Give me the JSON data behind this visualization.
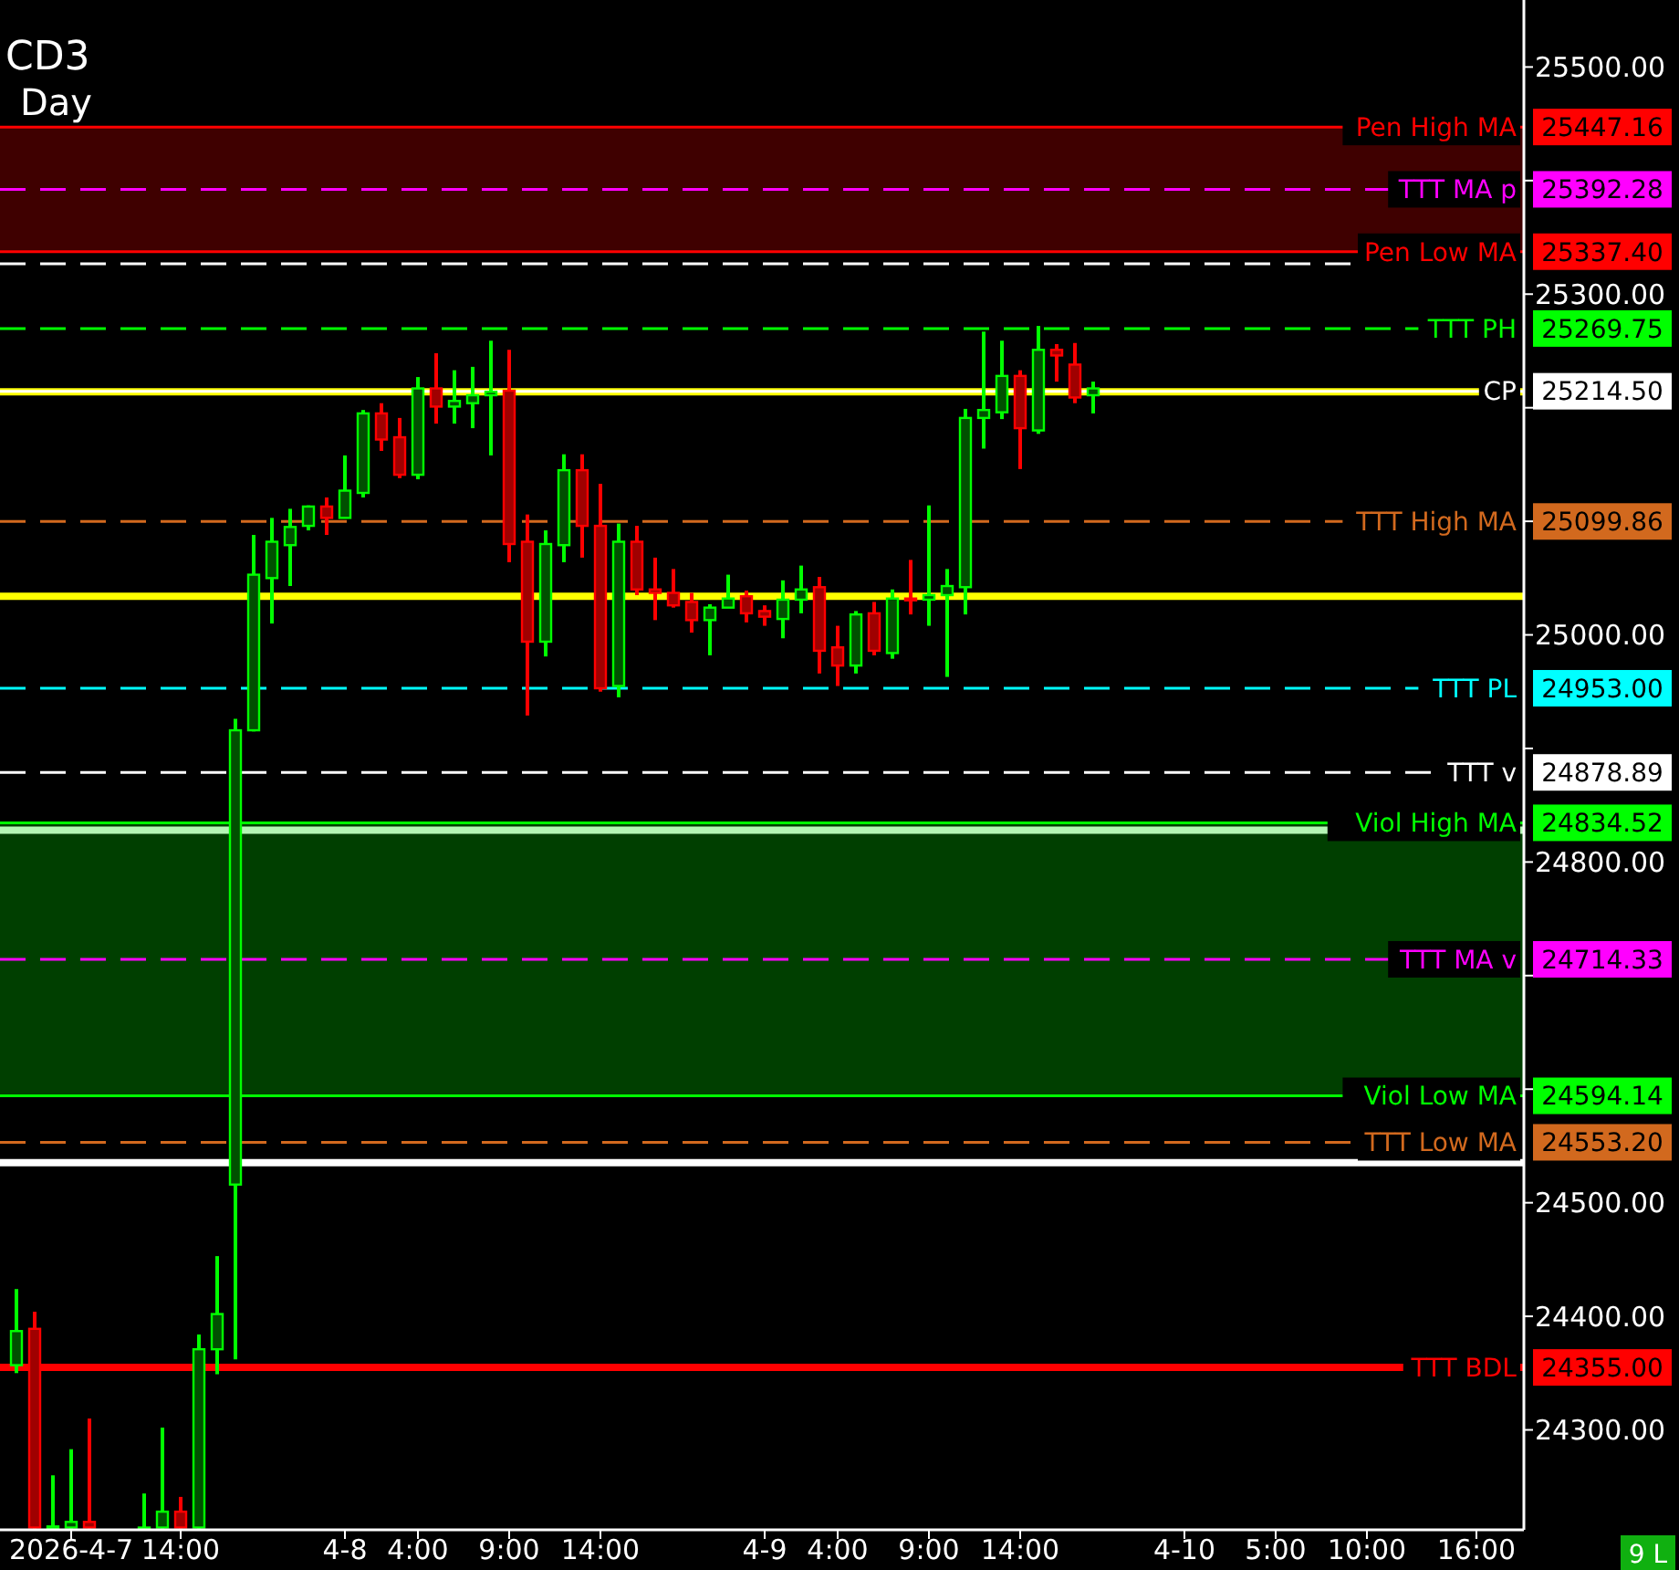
{
  "chart_data": {
    "type": "candlestick",
    "title": "CD3",
    "subtitle": "Day",
    "categories": [
      null,
      null,
      null,
      "2026-4-7",
      null,
      null,
      null,
      null,
      null,
      "14:00",
      null,
      null,
      null,
      null,
      null,
      null,
      null,
      null,
      "4-8",
      null,
      null,
      null,
      "4:00",
      null,
      null,
      null,
      null,
      "9:00",
      null,
      null,
      null,
      null,
      "14:00",
      null,
      null,
      null,
      null,
      null,
      null,
      null,
      null,
      "4-9",
      null,
      null,
      null,
      "4:00",
      null,
      null,
      null,
      null,
      "9:00",
      null,
      null,
      null,
      null,
      "14:00",
      null,
      null,
      null,
      null,
      null,
      null,
      null,
      null,
      "4-10",
      null,
      null,
      null,
      null,
      "5:00",
      null,
      null,
      null,
      null,
      "10:00",
      null,
      null,
      null,
      null,
      null,
      "16:00",
      null,
      null
    ],
    "ohlc": [
      [
        24357,
        24424,
        24350,
        24387
      ],
      [
        24389,
        24404,
        24213,
        24214
      ],
      [
        24213,
        24260,
        24213,
        24215
      ],
      [
        24214,
        24283,
        24213,
        24219
      ],
      [
        24219,
        24310,
        24213,
        24214
      ],
      null,
      null,
      [
        24213,
        24244,
        24213,
        24214
      ],
      [
        24214,
        24302,
        24213,
        24228
      ],
      [
        24228,
        24241,
        24213,
        24214
      ],
      [
        24214,
        24384,
        24213,
        24371
      ],
      [
        24371,
        24453,
        24349,
        24402
      ],
      [
        24516,
        24926,
        24362,
        24916
      ],
      [
        24916,
        25088,
        24915,
        25053
      ],
      [
        25050,
        25103,
        25010,
        25082
      ],
      [
        25079,
        25111,
        25043,
        25095
      ],
      [
        25096,
        25114,
        25092,
        25113
      ],
      [
        25113,
        25121,
        25088,
        25103
      ],
      [
        25103,
        25158,
        25103,
        25127
      ],
      [
        25125,
        25198,
        25121,
        25195
      ],
      [
        25195,
        25204,
        25162,
        25172
      ],
      [
        25174,
        25191,
        25138,
        25141
      ],
      [
        25141,
        25227,
        25137,
        25217
      ],
      [
        25217,
        25248,
        25186,
        25201
      ],
      [
        25201,
        25233,
        25186,
        25206
      ],
      [
        25204,
        25236,
        25182,
        25211
      ],
      [
        25211,
        25259,
        25158,
        25214
      ],
      [
        25215,
        25251,
        25064,
        25080
      ],
      [
        25082,
        25106,
        24929,
        24994
      ],
      [
        24994,
        25092,
        24981,
        25080
      ],
      [
        25079,
        25159,
        25064,
        25145
      ],
      [
        25145,
        25159,
        25068,
        25096
      ],
      [
        25096,
        25133,
        24950,
        24953
      ],
      [
        24955,
        25098,
        24945,
        25082
      ],
      [
        25082,
        25096,
        25035,
        25040
      ],
      [
        25040,
        25068,
        25013,
        25037
      ],
      [
        25037,
        25058,
        25024,
        25026
      ],
      [
        25029,
        25037,
        25002,
        25013
      ],
      [
        25013,
        25027,
        24982,
        25024
      ],
      [
        25024,
        25053,
        25024,
        25032
      ],
      [
        25034,
        25039,
        25011,
        25019
      ],
      [
        25021,
        25026,
        25008,
        25016
      ],
      [
        25014,
        25048,
        24997,
        25031
      ],
      [
        25031,
        25061,
        25019,
        25040
      ],
      [
        25042,
        25051,
        24966,
        24986
      ],
      [
        24989,
        25008,
        24955,
        24973
      ],
      [
        24973,
        25021,
        24966,
        25018
      ],
      [
        25019,
        25029,
        24982,
        24986
      ],
      [
        24984,
        25040,
        24979,
        25032
      ],
      [
        25032,
        25066,
        25018,
        25031
      ],
      [
        25031,
        25114,
        25008,
        25035
      ],
      [
        25035,
        25058,
        24963,
        25043
      ],
      [
        25042,
        25199,
        25018,
        25191
      ],
      [
        25191,
        25267,
        25164,
        25198
      ],
      [
        25196,
        25259,
        25190,
        25228
      ],
      [
        25228,
        25233,
        25146,
        25182
      ],
      [
        25180,
        25272,
        25177,
        25251
      ],
      [
        25251,
        25256,
        25223,
        25246
      ],
      [
        25238,
        25257,
        25204,
        25209
      ],
      [
        25211,
        25223,
        25195,
        25217
      ],
      null,
      null,
      null,
      null,
      null,
      null,
      null,
      null,
      null,
      null,
      null,
      null,
      null,
      null,
      null,
      null,
      null,
      null,
      null,
      null,
      null,
      null,
      null
    ],
    "ylim": [
      24212,
      25559
    ],
    "yticks": [
      {
        "value": 24300,
        "label": "24300.00"
      },
      {
        "value": 24400,
        "label": "24400.00"
      },
      {
        "value": 24500,
        "label": "24500.00"
      },
      {
        "value": 24600,
        "label": null
      },
      {
        "value": 24700,
        "label": null
      },
      {
        "value": 24800,
        "label": "24800.00"
      },
      {
        "value": 24900,
        "label": null
      },
      {
        "value": 25000,
        "label": "25000.00"
      },
      {
        "value": 25100,
        "label": null
      },
      {
        "value": 25200,
        "label": null
      },
      {
        "value": 25300,
        "label": "25300.00"
      },
      {
        "value": 25400,
        "label": null
      },
      {
        "value": 25500,
        "label": "25500.00"
      }
    ],
    "bands": [
      {
        "axis": "y",
        "from": 25337.4,
        "to": 25447.16,
        "color": "#3f0000"
      },
      {
        "axis": "y",
        "from": 24594.14,
        "to": 24834.52,
        "color": "#003f00"
      }
    ],
    "ref_lines": [
      {
        "axis": "y",
        "value": 25447.16,
        "label": "Pen High MA",
        "color": "#ff0000"
      },
      {
        "axis": "y",
        "value": 25392.28,
        "label": "TTT MA p",
        "color": "#ff00ff",
        "line_style": "dashed"
      },
      {
        "axis": "y",
        "value": 25337.4,
        "label": "Pen Low MA",
        "color": "#ff0000"
      },
      {
        "axis": "y",
        "value": 25326.75,
        "color": "#ffffff",
        "line_style": "dashed"
      },
      {
        "axis": "y",
        "value": 25269.75,
        "label": "TTT PH",
        "color": "#00ff00",
        "line_style": "dashed"
      },
      {
        "axis": "y",
        "value": 25214,
        "color": "#ffff00",
        "line_style": "solid"
      },
      {
        "axis": "y",
        "value": 25214.5,
        "label": "CP",
        "color": "#ffffff"
      },
      {
        "axis": "y",
        "value": 25099.86,
        "label": "TTT High MA",
        "color": "#d2691e",
        "line_style": "dashed"
      },
      {
        "axis": "y",
        "value": 25034,
        "color": "#ffff00",
        "line_style": "solid"
      },
      {
        "axis": "y",
        "value": 24953.0,
        "label": "TTT PL",
        "color": "#00ffff",
        "line_style": "dashed"
      },
      {
        "axis": "y",
        "value": 24878.89,
        "label": "TTT v",
        "color": "#ffffff",
        "line_style": "dashed"
      },
      {
        "axis": "y",
        "value": 24834.52,
        "label": "Viol High MA",
        "color": "#00ff00"
      },
      {
        "axis": "y",
        "value": 24828,
        "color": "#b4f5b4",
        "line_style": "solid"
      },
      {
        "axis": "y",
        "value": 24714.33,
        "label": "TTT MA v",
        "color": "#ff00ff",
        "line_style": "dashed"
      },
      {
        "axis": "y",
        "value": 24594.14,
        "label": "Viol Low MA",
        "color": "#00ff00"
      },
      {
        "axis": "y",
        "value": 24553.2,
        "label": "TTT Low MA",
        "color": "#d2691e",
        "line_style": "dashed"
      },
      {
        "axis": "y",
        "value": 24535.28,
        "color": "#ffffff",
        "line_style": "solid"
      },
      {
        "axis": "y",
        "value": 24355.0,
        "label": "TTT BDL",
        "color": "#ff0000",
        "line_style": "solid"
      }
    ],
    "annotations": [
      "25447.16",
      "25392.28",
      "25337.40",
      "25269.75",
      "25214.50",
      "25099.86",
      "24953.00",
      "24878.89",
      "24834.52",
      "24714.33",
      "24594.14",
      "24553.20",
      "24355.00",
      "9 L"
    ]
  }
}
